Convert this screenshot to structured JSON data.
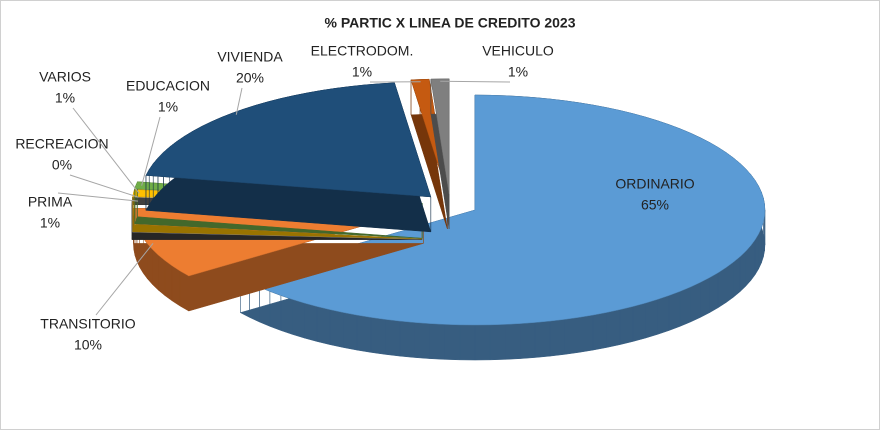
{
  "chart_data": {
    "type": "pie",
    "title": "% PARTIC X LINEA DE CREDITO 2023",
    "categories": [
      "ORDINARIO",
      "TRANSITORIO",
      "PRIMA",
      "RECREACION",
      "VARIOS",
      "EDUCACION",
      "VIVIENDA",
      "ELECTRODOM.",
      "VEHICULO"
    ],
    "values": [
      65,
      10,
      1,
      0,
      1,
      1,
      20,
      1,
      1
    ],
    "value_labels": [
      "65%",
      "10%",
      "1%",
      "0%",
      "1%",
      "1%",
      "20%",
      "1%",
      "1%"
    ],
    "colors": [
      "#5b9bd5",
      "#ed7d31",
      "#404040",
      "#d9d9d9",
      "#ffc000",
      "#70ad47",
      "#1f4e79",
      "#c55a11",
      "#7f7f7f"
    ]
  }
}
